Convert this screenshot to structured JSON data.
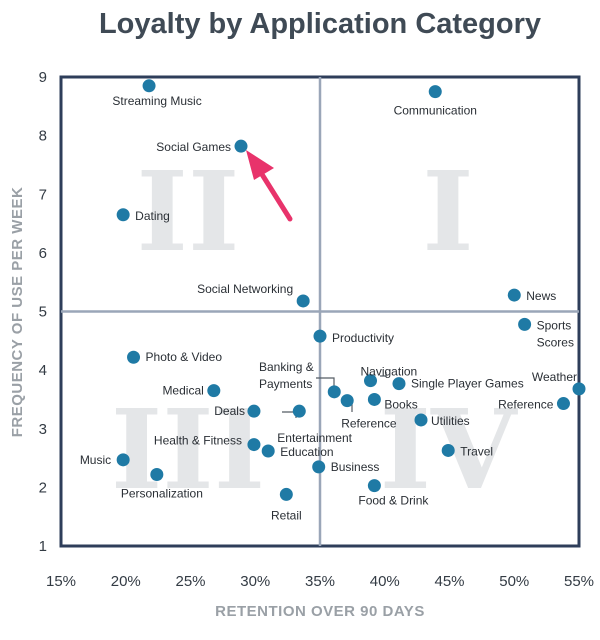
{
  "chart_data": {
    "type": "scatter",
    "title": "Loyalty by Application Category",
    "xlabel": "RETENTION OVER 90 DAYS",
    "ylabel": "FREQUENCY OF USE PER WEEK",
    "xlim": [
      15,
      55
    ],
    "ylim": [
      1,
      9
    ],
    "x_ticks": [
      "15%",
      "20%",
      "25%",
      "30%",
      "35%",
      "40%",
      "45%",
      "50%",
      "55%"
    ],
    "y_ticks": [
      "1",
      "2",
      "3",
      "4",
      "5",
      "6",
      "7",
      "8",
      "9"
    ],
    "quadrant_dividers": {
      "x": 35,
      "y": 5
    },
    "quadrant_labels": [
      "I",
      "II",
      "III",
      "IV"
    ],
    "point_color": "#1f7aa5",
    "highlight_color": "#e8336b",
    "highlight_point": "Social Games",
    "points": [
      {
        "label": "Streaming Music",
        "x": 21.8,
        "y": 8.85
      },
      {
        "label": "Communication",
        "x": 43.9,
        "y": 8.75
      },
      {
        "label": "Social Games",
        "x": 28.9,
        "y": 7.82
      },
      {
        "label": "Dating",
        "x": 19.8,
        "y": 6.65
      },
      {
        "label": "Social Networking",
        "x": 33.7,
        "y": 5.18
      },
      {
        "label": "News",
        "x": 50.0,
        "y": 5.28
      },
      {
        "label": "Sports Scores",
        "x": 50.8,
        "y": 4.78
      },
      {
        "label": "Productivity",
        "x": 35.0,
        "y": 4.58
      },
      {
        "label": "Photo & Video",
        "x": 20.6,
        "y": 4.22
      },
      {
        "label": "Navigation",
        "x": 38.9,
        "y": 3.82
      },
      {
        "label": "Single Player Games",
        "x": 41.1,
        "y": 3.77
      },
      {
        "label": "Weather",
        "x": 55.0,
        "y": 3.68
      },
      {
        "label": "Medical",
        "x": 26.8,
        "y": 3.65
      },
      {
        "label": "Banking & Payments",
        "x": 36.1,
        "y": 3.63
      },
      {
        "label": "Books",
        "x": 39.2,
        "y": 3.5
      },
      {
        "label": "Reference",
        "x": 37.1,
        "y": 3.48
      },
      {
        "label": "Reference",
        "x": 53.8,
        "y": 3.43
      },
      {
        "label": "Deals",
        "x": 29.9,
        "y": 3.3
      },
      {
        "label": "Entertainment",
        "x": 33.4,
        "y": 3.3
      },
      {
        "label": "Utilities",
        "x": 42.8,
        "y": 3.15
      },
      {
        "label": "Health & Fitness",
        "x": 29.9,
        "y": 2.73
      },
      {
        "label": "Education",
        "x": 31.0,
        "y": 2.62
      },
      {
        "label": "Travel",
        "x": 44.9,
        "y": 2.63
      },
      {
        "label": "Music",
        "x": 19.8,
        "y": 2.47
      },
      {
        "label": "Business",
        "x": 34.9,
        "y": 2.35
      },
      {
        "label": "Personalization",
        "x": 22.4,
        "y": 2.22
      },
      {
        "label": "Food & Drink",
        "x": 39.2,
        "y": 2.03
      },
      {
        "label": "Retail",
        "x": 32.4,
        "y": 1.88
      }
    ]
  }
}
